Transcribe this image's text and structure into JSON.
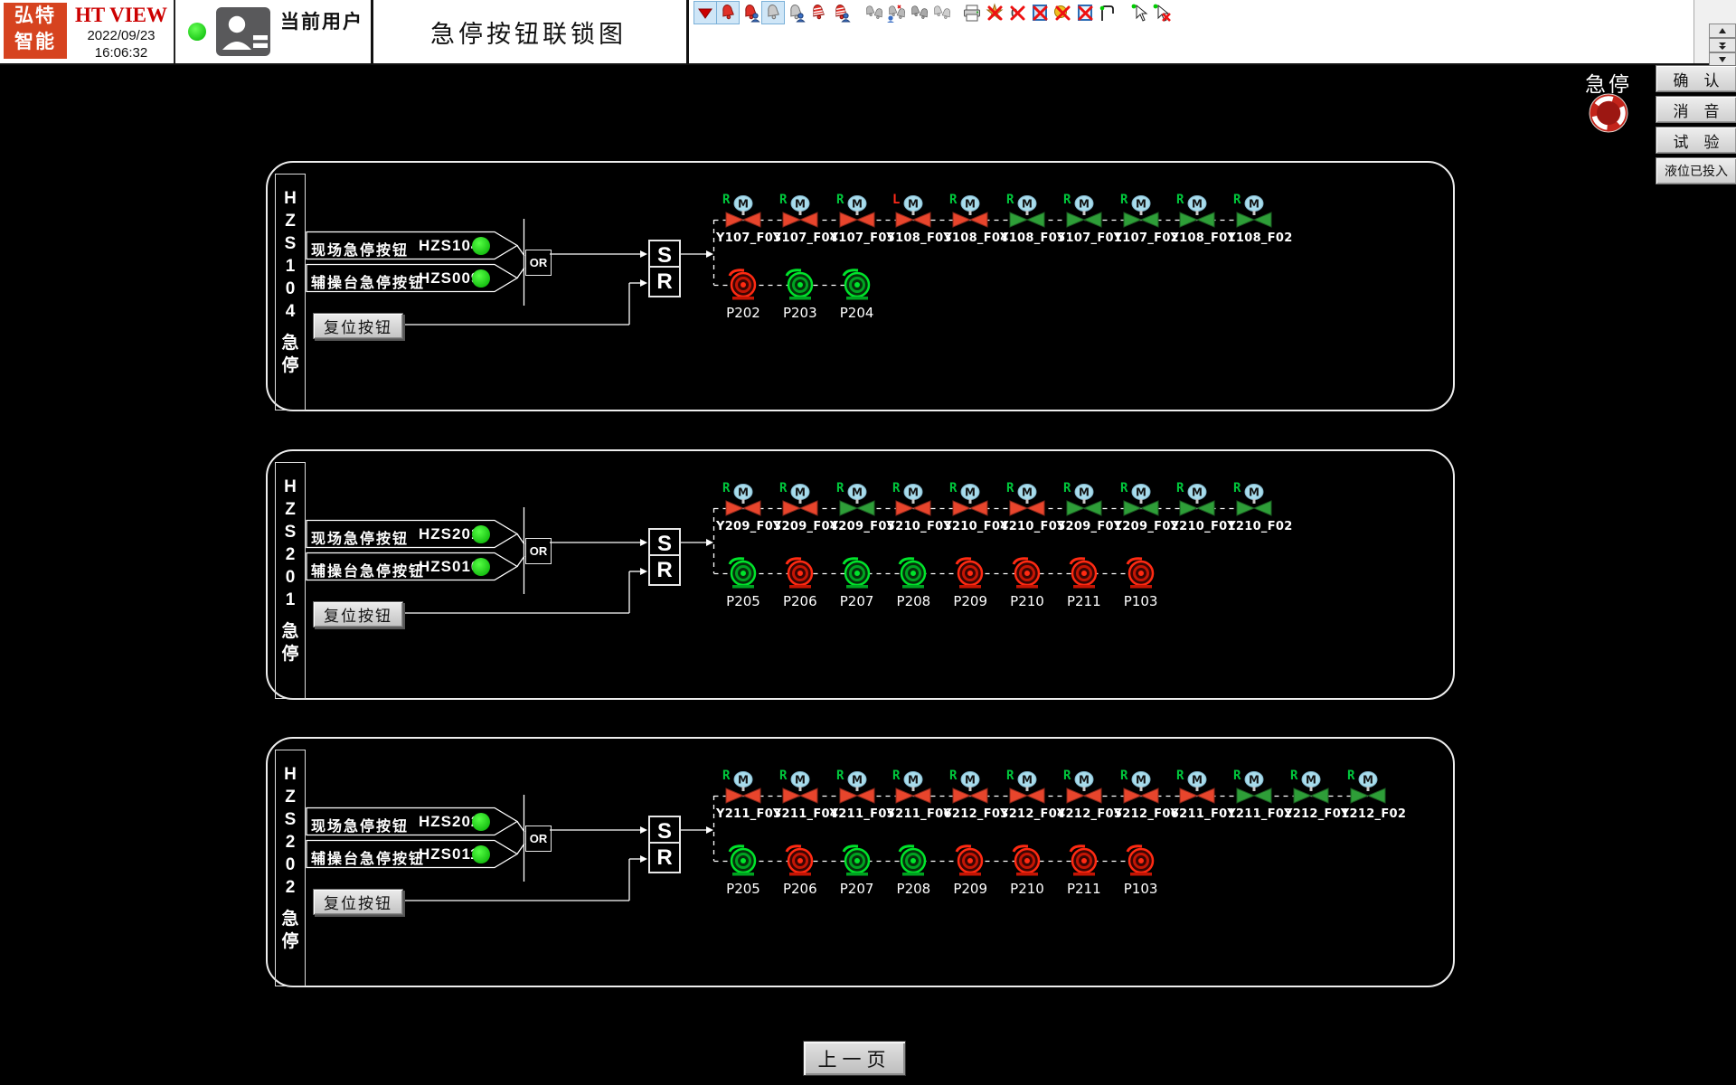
{
  "header": {
    "logo_line1": "弘特",
    "logo_line2": "智能",
    "brand": "HT VIEW",
    "date": "2022/09/23",
    "time": "16:06:32",
    "current_user_label": "当前用户",
    "title": "急停按钮联锁图",
    "toolbar_icons": [
      {
        "name": "alarm-dropdown",
        "highlighted": true
      },
      {
        "name": "alarm-bell-red",
        "highlighted": true
      },
      {
        "name": "alarm-bell-person-red",
        "highlighted": false
      },
      {
        "name": "alarm-bell-gray",
        "highlighted": true
      },
      {
        "name": "alarm-bell-person-gray",
        "highlighted": false
      },
      {
        "name": "alarm-bell-striped-red",
        "highlighted": false
      },
      {
        "name": "alarm-bell-striped-person-red",
        "highlighted": false
      },
      {
        "name": "alarm-bells-gray",
        "highlighted": false,
        "gap_before": true
      },
      {
        "name": "alarm-bells-person-red",
        "highlighted": false
      },
      {
        "name": "alarm-bells-gray-2",
        "highlighted": false
      },
      {
        "name": "alarm-bells-gray-3",
        "highlighted": false
      },
      {
        "name": "print",
        "highlighted": false,
        "gap_before": true
      },
      {
        "name": "summary-remove",
        "highlighted": false
      },
      {
        "name": "zero-remove",
        "highlighted": false
      },
      {
        "name": "frame-remove",
        "highlighted": false
      },
      {
        "name": "tag-remove",
        "highlighted": false
      },
      {
        "name": "frame-remove-2",
        "highlighted": false
      },
      {
        "name": "trend-flag",
        "highlighted": false
      },
      {
        "name": "pointer-enable",
        "highlighted": false,
        "gap_before": true
      },
      {
        "name": "pointer-disable",
        "highlighted": false
      }
    ]
  },
  "alarm_panel": {
    "estop_label": "急停",
    "buttons": [
      "确　认",
      "消　音",
      "试　验",
      "液位已投入"
    ]
  },
  "panels": [
    {
      "id": "HZS104",
      "vertical_label_top": "HZS104",
      "vertical_label_bottom": "急停",
      "rows": [
        {
          "label": "现场急停按钮",
          "tag": "HZS104",
          "dot_color": "#00dd00"
        },
        {
          "label": "辅操台急停按钮",
          "tag": "HZS009",
          "dot_color": "#00dd00"
        }
      ],
      "or_label": "OR",
      "set_label": "S",
      "reset_label": "R",
      "reset_button_label": "复位按钮",
      "valves": [
        {
          "tag": "Y107_F03",
          "color": "red",
          "flag": "R",
          "flag_color": "#00c83c"
        },
        {
          "tag": "Y107_F04",
          "color": "red",
          "flag": "R",
          "flag_color": "#00c83c"
        },
        {
          "tag": "Y107_F05",
          "color": "red",
          "flag": "R",
          "flag_color": "#00c83c"
        },
        {
          "tag": "Y108_F03",
          "color": "red",
          "flag": "L",
          "flag_color": "#ff2a1a"
        },
        {
          "tag": "Y108_F04",
          "color": "red",
          "flag": "R",
          "flag_color": "#00c83c"
        },
        {
          "tag": "Y108_F05",
          "color": "green",
          "flag": "R",
          "flag_color": "#00c83c"
        },
        {
          "tag": "Y107_F01",
          "color": "green",
          "flag": "R",
          "flag_color": "#00c83c"
        },
        {
          "tag": "Y107_F02",
          "color": "green",
          "flag": "R",
          "flag_color": "#00c83c"
        },
        {
          "tag": "Y108_F01",
          "color": "green",
          "flag": "R",
          "flag_color": "#00c83c"
        },
        {
          "tag": "Y108_F02",
          "color": "green",
          "flag": "R",
          "flag_color": "#00c83c"
        }
      ],
      "pumps": [
        {
          "tag": "P202",
          "color": "red"
        },
        {
          "tag": "P203",
          "color": "green"
        },
        {
          "tag": "P204",
          "color": "green"
        }
      ]
    },
    {
      "id": "HZS201",
      "vertical_label_top": "HZS201",
      "vertical_label_bottom": "急停",
      "rows": [
        {
          "label": "现场急停按钮",
          "tag": "HZS201",
          "dot_color": "#00dd00"
        },
        {
          "label": "辅操台急停按钮",
          "tag": "HZS010",
          "dot_color": "#00dd00"
        }
      ],
      "or_label": "OR",
      "set_label": "S",
      "reset_label": "R",
      "reset_button_label": "复位按钮",
      "valves": [
        {
          "tag": "Y209_F03",
          "color": "red",
          "flag": "R",
          "flag_color": "#00c83c"
        },
        {
          "tag": "Y209_F04",
          "color": "red",
          "flag": "R",
          "flag_color": "#00c83c"
        },
        {
          "tag": "Y209_F05",
          "color": "green",
          "flag": "R",
          "flag_color": "#00c83c"
        },
        {
          "tag": "Y210_F03",
          "color": "red",
          "flag": "R",
          "flag_color": "#00c83c"
        },
        {
          "tag": "Y210_F04",
          "color": "red",
          "flag": "R",
          "flag_color": "#00c83c"
        },
        {
          "tag": "Y210_F05",
          "color": "red",
          "flag": "R",
          "flag_color": "#00c83c"
        },
        {
          "tag": "Y209_F01",
          "color": "green",
          "flag": "R",
          "flag_color": "#00c83c"
        },
        {
          "tag": "Y209_F02",
          "color": "green",
          "flag": "R",
          "flag_color": "#00c83c"
        },
        {
          "tag": "Y210_F01",
          "color": "green",
          "flag": "R",
          "flag_color": "#00c83c"
        },
        {
          "tag": "Y210_F02",
          "color": "green",
          "flag": "R",
          "flag_color": "#00c83c"
        }
      ],
      "pumps": [
        {
          "tag": "P205",
          "color": "green"
        },
        {
          "tag": "P206",
          "color": "red"
        },
        {
          "tag": "P207",
          "color": "green"
        },
        {
          "tag": "P208",
          "color": "green"
        },
        {
          "tag": "P209",
          "color": "red"
        },
        {
          "tag": "P210",
          "color": "red"
        },
        {
          "tag": "P211",
          "color": "red"
        },
        {
          "tag": "P103",
          "color": "red"
        }
      ]
    },
    {
      "id": "HZS202",
      "vertical_label_top": "HZS202",
      "vertical_label_bottom": "急停",
      "rows": [
        {
          "label": "现场急停按钮",
          "tag": "HZS202",
          "dot_color": "#00dd00"
        },
        {
          "label": "辅操台急停按钮",
          "tag": "HZS011",
          "dot_color": "#00dd00"
        }
      ],
      "or_label": "OR",
      "set_label": "S",
      "reset_label": "R",
      "reset_button_label": "复位按钮",
      "valves": [
        {
          "tag": "Y211_F03",
          "color": "red",
          "flag": "R",
          "flag_color": "#00c83c"
        },
        {
          "tag": "Y211_F04",
          "color": "red",
          "flag": "R",
          "flag_color": "#00c83c"
        },
        {
          "tag": "Y211_F05",
          "color": "red",
          "flag": "R",
          "flag_color": "#00c83c"
        },
        {
          "tag": "Y211_F06",
          "color": "red",
          "flag": "R",
          "flag_color": "#00c83c"
        },
        {
          "tag": "Y212_F03",
          "color": "red",
          "flag": "R",
          "flag_color": "#00c83c"
        },
        {
          "tag": "Y212_F04",
          "color": "red",
          "flag": "R",
          "flag_color": "#00c83c"
        },
        {
          "tag": "Y212_F05",
          "color": "red",
          "flag": "R",
          "flag_color": "#00c83c"
        },
        {
          "tag": "Y212_F06",
          "color": "red",
          "flag": "R",
          "flag_color": "#00c83c"
        },
        {
          "tag": "Y211_F01",
          "color": "red",
          "flag": "R",
          "flag_color": "#00c83c"
        },
        {
          "tag": "Y211_F02",
          "color": "green",
          "flag": "R",
          "flag_color": "#00c83c"
        },
        {
          "tag": "Y212_F01",
          "color": "green",
          "flag": "R",
          "flag_color": "#00c83c"
        },
        {
          "tag": "Y212_F02",
          "color": "green",
          "flag": "R",
          "flag_color": "#00c83c"
        }
      ],
      "pumps": [
        {
          "tag": "P205",
          "color": "green"
        },
        {
          "tag": "P206",
          "color": "red"
        },
        {
          "tag": "P207",
          "color": "green"
        },
        {
          "tag": "P208",
          "color": "green"
        },
        {
          "tag": "P209",
          "color": "red"
        },
        {
          "tag": "P210",
          "color": "red"
        },
        {
          "tag": "P211",
          "color": "red"
        },
        {
          "tag": "P103",
          "color": "red"
        }
      ]
    }
  ],
  "footer": {
    "prev_page_label": "上一页"
  },
  "colors": {
    "valve_red": "#e8452c",
    "valve_green": "#2e9e38",
    "pump_red": "#c41504",
    "pump_green": "#00a321",
    "logo_bg": "#d6431f",
    "brand_red": "#cc0000",
    "state_dot_green": "#00dd00"
  }
}
